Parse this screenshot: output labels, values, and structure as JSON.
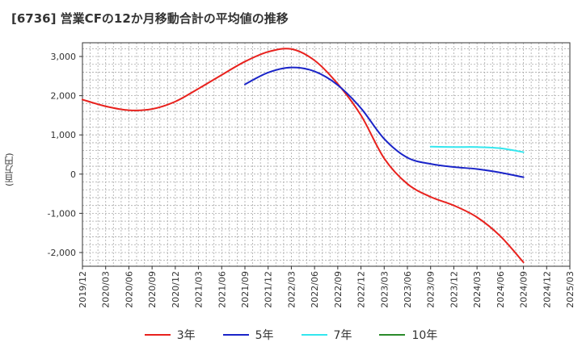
{
  "chart_data": {
    "type": "line",
    "title": "[6736]  営業CFの12か月移動合計の平均値の推移",
    "ylabel": "(百万円)",
    "xlabel": "",
    "ylim": [
      -2350,
      3350
    ],
    "yticks": [
      3000,
      2000,
      1000,
      0,
      -1000,
      -2000
    ],
    "ytick_labels": [
      "3,000",
      "2,000",
      "1,000",
      "0",
      "-1,000",
      "-2,000"
    ],
    "categories": [
      "2019/12",
      "2020/03",
      "2020/06",
      "2020/09",
      "2020/12",
      "2021/03",
      "2021/06",
      "2021/09",
      "2021/12",
      "2022/03",
      "2022/06",
      "2022/09",
      "2022/12",
      "2023/03",
      "2023/06",
      "2023/09",
      "2023/12",
      "2024/03",
      "2024/06",
      "2024/09",
      "2024/12",
      "2025/03"
    ],
    "grid": true,
    "legend_position": "bottom",
    "series": [
      {
        "name": "3年",
        "color": "#e8211d",
        "values": [
          1900,
          1730,
          1630,
          1660,
          1850,
          2180,
          2530,
          2870,
          3120,
          3190,
          2900,
          2300,
          1500,
          400,
          -250,
          -580,
          -800,
          -1100,
          -1580,
          -2250,
          null,
          null
        ]
      },
      {
        "name": "5年",
        "color": "#1a24c8",
        "values": [
          null,
          null,
          null,
          null,
          null,
          null,
          null,
          2290,
          2590,
          2720,
          2620,
          2270,
          1680,
          900,
          420,
          260,
          180,
          130,
          40,
          -80,
          null,
          null
        ]
      },
      {
        "name": "7年",
        "color": "#33e6ee",
        "values": [
          null,
          null,
          null,
          null,
          null,
          null,
          null,
          null,
          null,
          null,
          null,
          null,
          null,
          null,
          null,
          700,
          690,
          690,
          660,
          560,
          null,
          null
        ]
      },
      {
        "name": "10年",
        "color": "#2a8a2a",
        "values": [
          null,
          null,
          null,
          null,
          null,
          null,
          null,
          null,
          null,
          null,
          null,
          null,
          null,
          null,
          null,
          null,
          null,
          null,
          null,
          null,
          null,
          null
        ]
      }
    ]
  }
}
